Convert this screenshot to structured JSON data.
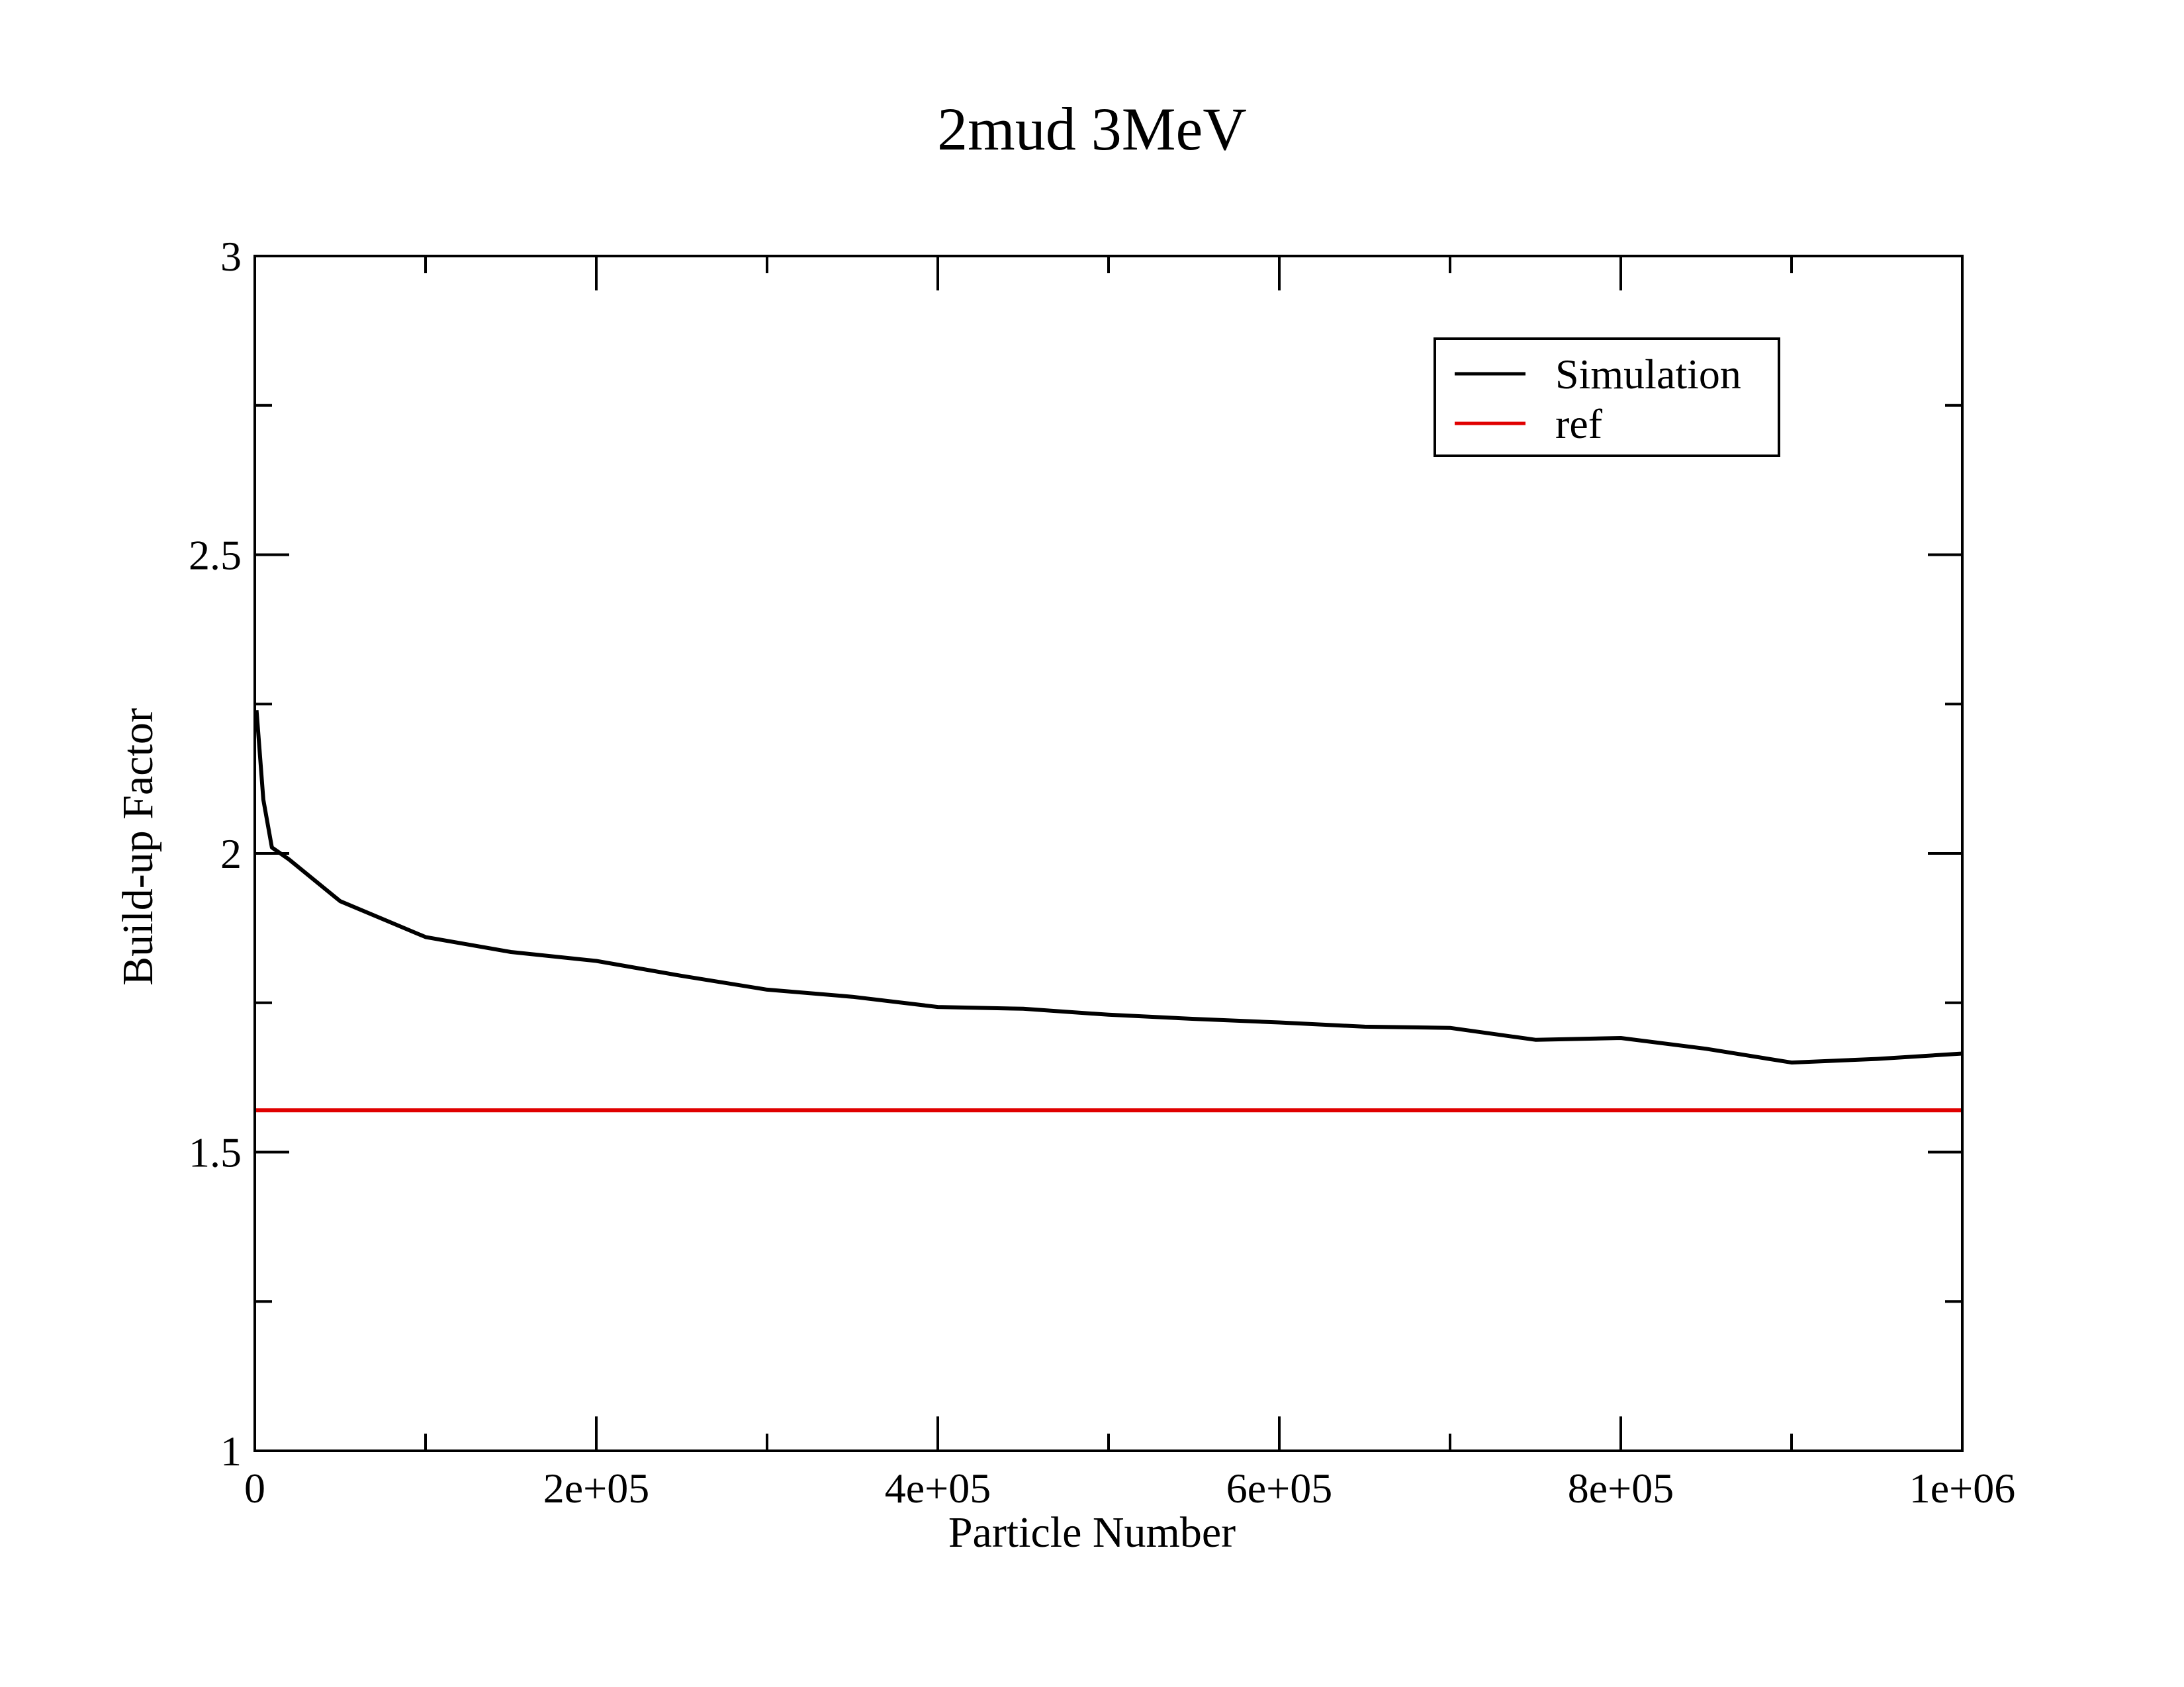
{
  "chart_data": {
    "type": "line",
    "title": "2mud 3MeV",
    "xlabel": "Particle Number",
    "ylabel": "Build-up Factor",
    "xlim": [
      0,
      1000000
    ],
    "ylim": [
      1,
      3
    ],
    "x_ticks": [
      0,
      200000,
      400000,
      600000,
      800000,
      1000000
    ],
    "x_tick_labels": [
      "0",
      "2e+05",
      "4e+05",
      "6e+05",
      "8e+05",
      "1e+06"
    ],
    "y_ticks": [
      1,
      1.5,
      2,
      2.5,
      3
    ],
    "y_tick_labels": [
      "1",
      "1.5",
      "2",
      "2.5",
      "3"
    ],
    "grid": false,
    "legend_position": "top-right",
    "series": [
      {
        "name": "Simulation",
        "color": "#000000",
        "x": [
          1000,
          5000,
          10000,
          20000,
          50000,
          100000,
          150000,
          200000,
          250000,
          300000,
          350000,
          400000,
          450000,
          500000,
          550000,
          600000,
          650000,
          700000,
          750000,
          800000,
          850000,
          900000,
          950000,
          1000000
        ],
        "y": [
          2.24,
          2.09,
          2.01,
          1.99,
          1.92,
          1.86,
          1.835,
          1.82,
          1.795,
          1.772,
          1.76,
          1.743,
          1.74,
          1.73,
          1.723,
          1.717,
          1.71,
          1.708,
          1.688,
          1.691,
          1.673,
          1.65,
          1.656,
          1.665
        ]
      },
      {
        "name": "ref",
        "color": "#e00000",
        "x": [
          0,
          1000000
        ],
        "y": [
          1.57,
          1.57
        ]
      }
    ]
  }
}
